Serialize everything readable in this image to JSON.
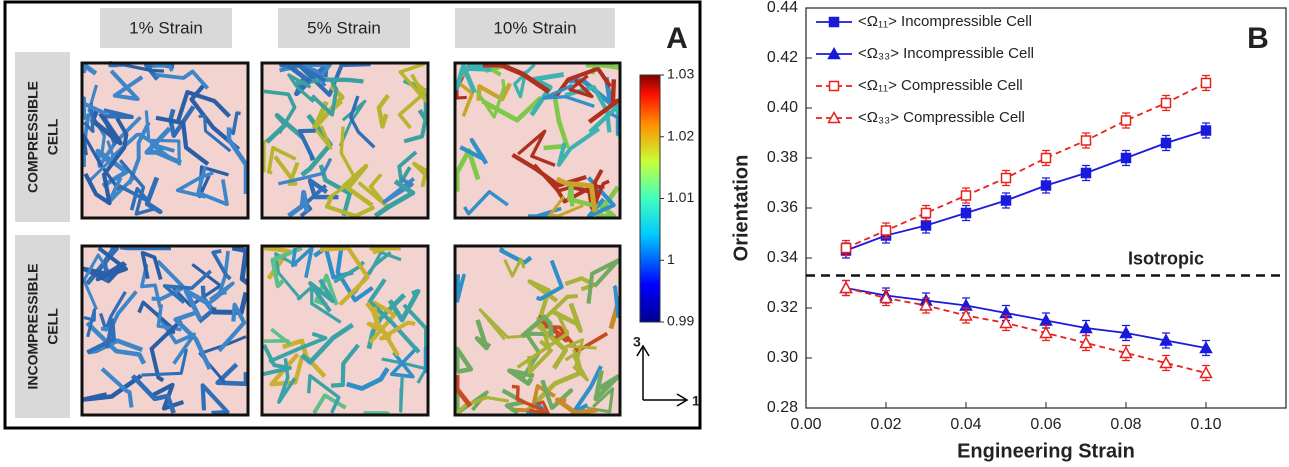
{
  "panel_a": {
    "label": "A",
    "column_headers": [
      "1% Strain",
      "5% Strain",
      "10% Strain"
    ],
    "row_headers": [
      [
        "COMPRESSIBLE",
        "CELL"
      ],
      [
        "INCOMPRESSIBLE",
        "CELL"
      ]
    ],
    "colorbar": {
      "clim": [
        0.99,
        1.03
      ],
      "ticks": [
        0.99,
        1,
        1.01,
        1.02,
        1.03
      ]
    },
    "axes_labels": [
      "3",
      "1"
    ]
  },
  "chart_data": {
    "type": "line",
    "panel_label": "B",
    "xlabel": "Engineering Strain",
    "ylabel": "Orientation",
    "x": [
      0.01,
      0.02,
      0.03,
      0.04,
      0.05,
      0.06,
      0.07,
      0.08,
      0.09,
      0.1
    ],
    "series": [
      {
        "name": "<Ω₁₁> Incompressible Cell",
        "color": "#1a1adb",
        "marker": "square",
        "filled": true,
        "line_style": "solid",
        "values": [
          0.343,
          0.349,
          0.353,
          0.358,
          0.363,
          0.369,
          0.374,
          0.38,
          0.386,
          0.391
        ],
        "errors": [
          0.003,
          0.003,
          0.003,
          0.003,
          0.003,
          0.003,
          0.003,
          0.003,
          0.003,
          0.003
        ]
      },
      {
        "name": "<Ω₃₃> Incompressible Cell",
        "color": "#1a1adb",
        "marker": "triangle",
        "filled": true,
        "line_style": "solid",
        "values": [
          0.328,
          0.325,
          0.323,
          0.321,
          0.318,
          0.315,
          0.312,
          0.31,
          0.307,
          0.304
        ],
        "errors": [
          0.003,
          0.003,
          0.003,
          0.003,
          0.003,
          0.003,
          0.003,
          0.003,
          0.003,
          0.003
        ]
      },
      {
        "name": "<Ω₁₁> Compressible Cell",
        "color": "#e8211d",
        "marker": "square",
        "filled": false,
        "line_style": "dashed",
        "values": [
          0.344,
          0.351,
          0.358,
          0.365,
          0.372,
          0.38,
          0.387,
          0.395,
          0.402,
          0.41
        ],
        "errors": [
          0.003,
          0.003,
          0.003,
          0.003,
          0.003,
          0.003,
          0.003,
          0.003,
          0.003,
          0.003
        ]
      },
      {
        "name": "<Ω₃₃> Compressible Cell",
        "color": "#e8211d",
        "marker": "triangle",
        "filled": false,
        "line_style": "dashed",
        "values": [
          0.328,
          0.324,
          0.321,
          0.317,
          0.314,
          0.31,
          0.306,
          0.302,
          0.298,
          0.294
        ],
        "errors": [
          0.003,
          0.003,
          0.003,
          0.003,
          0.003,
          0.003,
          0.003,
          0.003,
          0.003,
          0.003
        ]
      }
    ],
    "reference_line": {
      "value": 0.333,
      "label": "Isotropic"
    },
    "xlim": [
      0,
      0.12
    ],
    "ylim": [
      0.28,
      0.44
    ],
    "xticks": [
      {
        "value": 0,
        "label": "0.00"
      },
      0.02,
      0.04,
      0.06,
      0.08,
      {
        "value": 0.1,
        "label": "0.10"
      }
    ],
    "yticks": [
      0.28,
      {
        "value": 0.3,
        "label": "0.30"
      },
      0.32,
      0.34,
      0.36,
      0.38,
      {
        "value": 0.4,
        "label": "0.40"
      },
      0.42,
      0.44
    ],
    "legend": "upper left",
    "grid": false
  }
}
